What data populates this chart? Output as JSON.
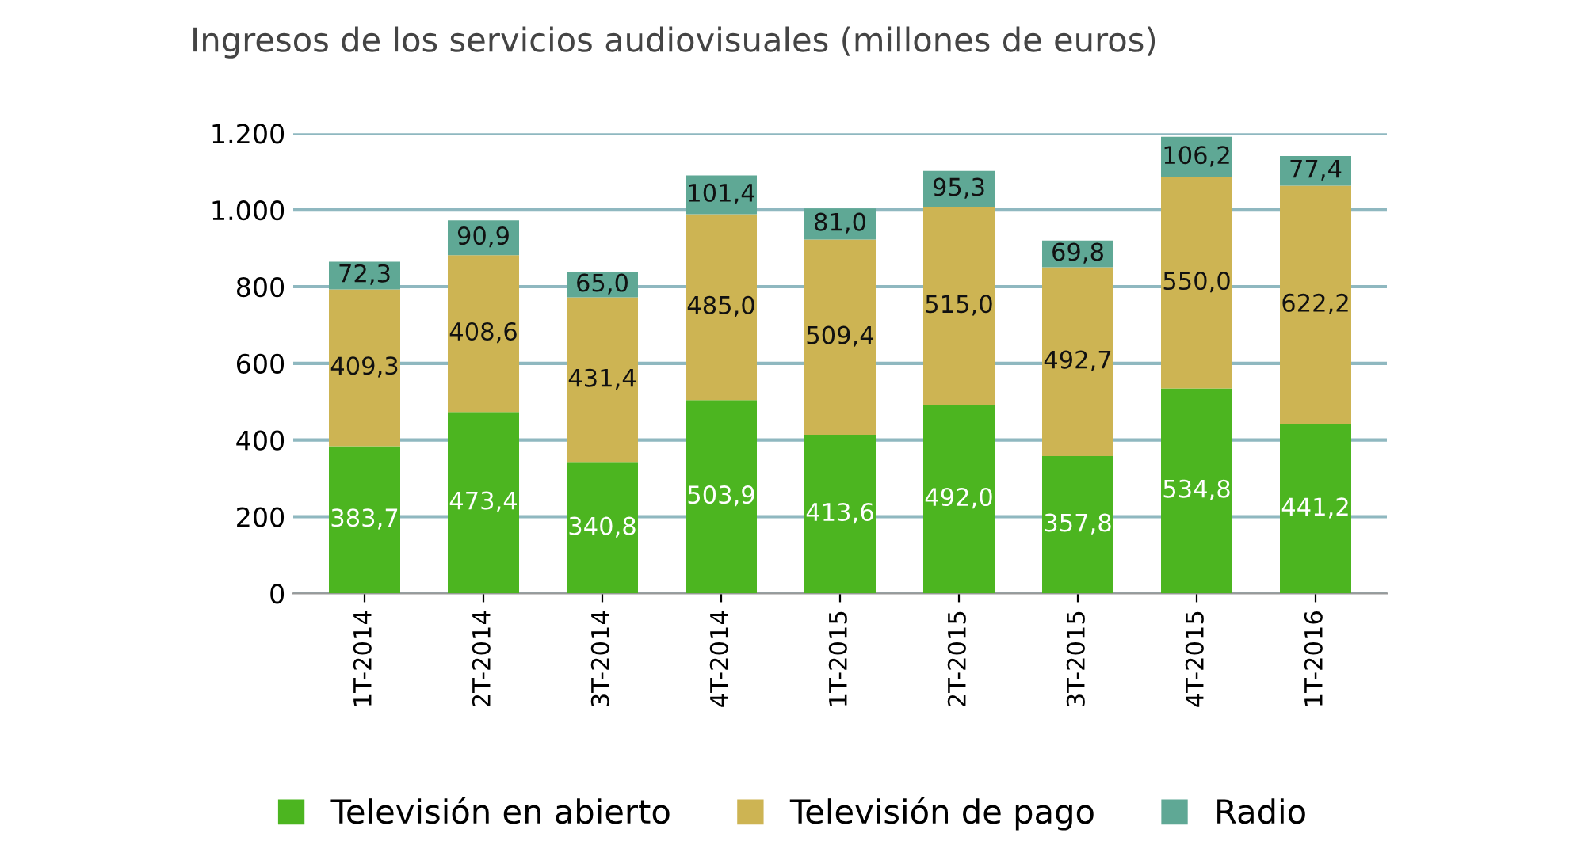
{
  "chart_data": {
    "type": "bar",
    "stacked": true,
    "title": "Ingresos de los servicios audiovisuales (millones de euros)",
    "categories": [
      "1T-2014",
      "2T-2014",
      "3T-2014",
      "4T-2014",
      "1T-2015",
      "2T-2015",
      "3T-2015",
      "4T-2015",
      "1T-2016"
    ],
    "series": [
      {
        "name": "Televisión en abierto",
        "color": "#4cb520",
        "values": [
          383.7,
          473.4,
          340.8,
          503.9,
          413.6,
          492.0,
          357.8,
          534.8,
          441.2
        ],
        "value_labels": [
          "383,7",
          "473,4",
          "340,8",
          "503,9",
          "413,6",
          "492,0",
          "357,8",
          "534,8",
          "441,2"
        ]
      },
      {
        "name": "Televisión de pago",
        "color": "#cdb453",
        "values": [
          409.3,
          408.6,
          431.4,
          485.0,
          509.4,
          515.0,
          492.7,
          550.0,
          622.2
        ],
        "value_labels": [
          "409,3",
          "408,6",
          "431,4",
          "485,0",
          "509,4",
          "515,0",
          "492,7",
          "550,0",
          "622,2"
        ]
      },
      {
        "name": "Radio",
        "color": "#5fa895",
        "values": [
          72.3,
          90.9,
          65.0,
          101.4,
          81.0,
          95.3,
          69.8,
          106.2,
          77.4
        ],
        "value_labels": [
          "72,3",
          "90,9",
          "65,0",
          "101,4",
          "81,0",
          "95,3",
          "69,8",
          "106,2",
          "77,4"
        ]
      }
    ],
    "ylim": [
      0,
      1200
    ],
    "yticks": [
      0,
      200,
      400,
      600,
      800,
      {
        "value": 1000,
        "label": "1.000"
      },
      {
        "value": 1200,
        "label": "1.200"
      }
    ],
    "grid": "y",
    "legend": "bottom"
  }
}
